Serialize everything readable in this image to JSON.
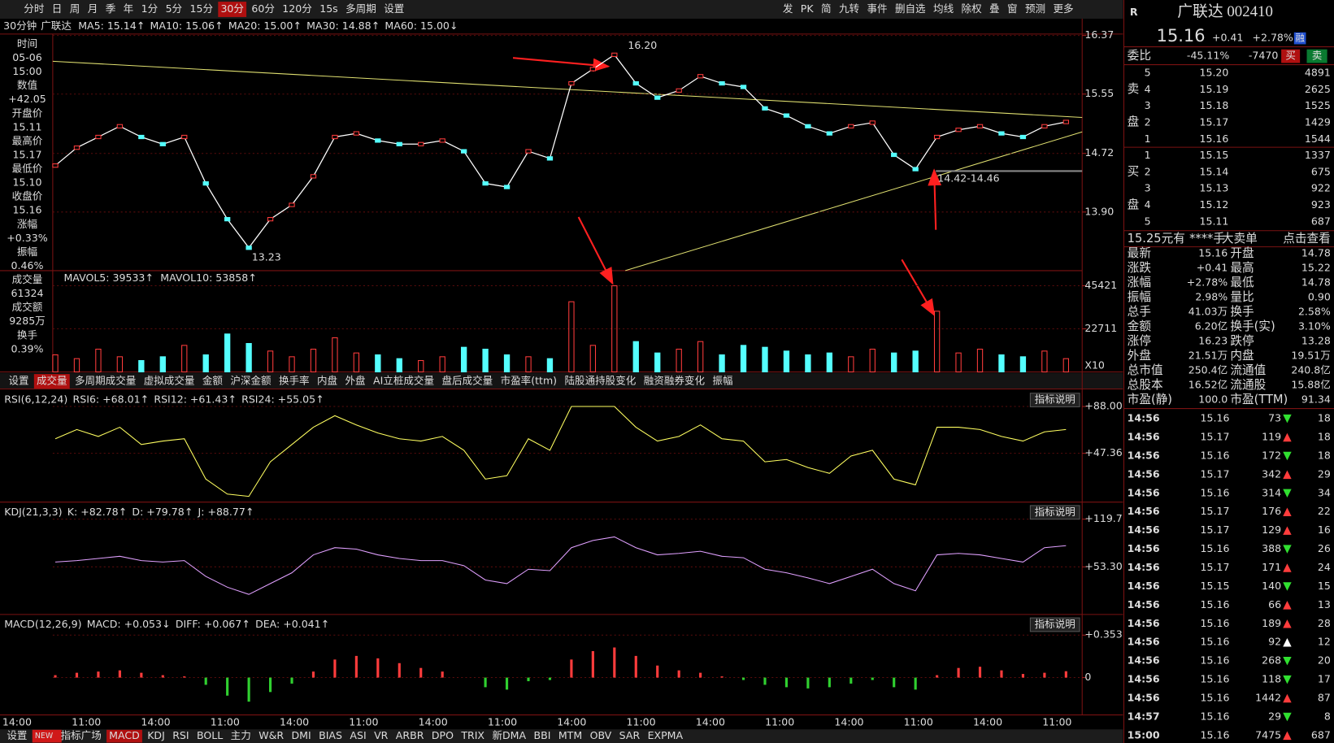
{
  "toolbar": {
    "left": [
      "分时",
      "日",
      "周",
      "月",
      "季",
      "年",
      "1分",
      "5分",
      "15分",
      "30分",
      "60分",
      "120分",
      "15s",
      "多周期",
      "设置"
    ],
    "active_index": 9,
    "right": [
      "发",
      "PK",
      "简",
      "九转",
      "事件",
      "删自选",
      "均线",
      "除权",
      "叠",
      "窗",
      "预测",
      "更多"
    ]
  },
  "header": {
    "period": "30分钟",
    "name": "广联达",
    "ma": [
      {
        "text": "MA5: 15.14↑",
        "color": "#ffffff"
      },
      {
        "text": "MA10: 15.06↑",
        "color": "#ffff00"
      },
      {
        "text": "MA20: 15.00↑",
        "color": "#ff50ff"
      },
      {
        "text": "MA30: 14.88↑",
        "color": "#30e030"
      },
      {
        "text": "MA60: 15.00↓",
        "color": "#6fa8ff"
      }
    ]
  },
  "info_panel": [
    {
      "text": "时间",
      "color": "#ddd"
    },
    {
      "text": "05-06",
      "color": "#fff"
    },
    {
      "text": "15:00",
      "color": "#fff"
    },
    {
      "text": "数值",
      "color": "#ddd"
    },
    {
      "text": "+42.05",
      "color": "#ff3c3c"
    },
    {
      "text": "开盘价",
      "color": "#ddd"
    },
    {
      "text": "15.11",
      "color": "#fff"
    },
    {
      "text": "最高价",
      "color": "#ddd"
    },
    {
      "text": "15.17",
      "color": "#ff3c3c"
    },
    {
      "text": "最低价",
      "color": "#ddd"
    },
    {
      "text": "15.10",
      "color": "#ff3c3c"
    },
    {
      "text": "收盘价",
      "color": "#ddd"
    },
    {
      "text": "15.16",
      "color": "#ff3c3c"
    },
    {
      "text": "涨幅",
      "color": "#ddd"
    },
    {
      "text": "+0.33%",
      "color": "#ff3c3c"
    },
    {
      "text": "振幅",
      "color": "#ddd"
    },
    {
      "text": "0.46%",
      "color": "#54ffff"
    },
    {
      "text": "成交量",
      "color": "#ddd"
    },
    {
      "text": "61324",
      "color": "#54ffff"
    },
    {
      "text": "成交额",
      "color": "#ddd"
    },
    {
      "text": "9285万",
      "color": "#54ffff"
    },
    {
      "text": "换手",
      "color": "#ddd"
    },
    {
      "text": "0.39%",
      "color": "#54ffff"
    }
  ],
  "price_chart": {
    "ylim": [
      13.08,
      16.39
    ],
    "yticks": [
      {
        "value": 13.9,
        "label": "13.90"
      },
      14.72,
      15.55,
      16.37
    ],
    "annotations": [
      "16.20",
      "13.23",
      "14.42-14.46"
    ],
    "closes": [
      14.55,
      14.8,
      14.95,
      15.1,
      14.95,
      14.85,
      14.95,
      14.3,
      13.8,
      13.4,
      13.8,
      14.0,
      14.4,
      14.95,
      15.0,
      14.9,
      14.85,
      14.85,
      14.9,
      14.75,
      14.3,
      14.25,
      14.75,
      14.65,
      15.7,
      15.9,
      16.1,
      15.7,
      15.5,
      15.6,
      15.8,
      15.7,
      15.65,
      15.35,
      15.25,
      15.1,
      15.0,
      15.1,
      15.15,
      14.7,
      14.5,
      14.95,
      15.05,
      15.1,
      15.0,
      14.95,
      15.1,
      15.16
    ]
  },
  "volume_chart": {
    "legend": [
      {
        "text": "MAVOL5: 39533↑",
        "color": "#ffffff"
      },
      {
        "text": "MAVOL10: 53858↑",
        "color": "#ffff00"
      }
    ],
    "ylim": [
      0,
      48000
    ],
    "yticks": [
      22711,
      45421
    ],
    "unit": "X10",
    "values": [
      9000,
      7000,
      12000,
      8000,
      6000,
      8000,
      14000,
      9000,
      20000,
      15000,
      11000,
      8000,
      12000,
      18000,
      10000,
      9000,
      7000,
      6000,
      8000,
      13000,
      12000,
      9000,
      8000,
      7000,
      37000,
      14000,
      45421,
      16000,
      10000,
      12000,
      16000,
      9000,
      14000,
      13000,
      11000,
      9000,
      10000,
      8000,
      12000,
      10000,
      11000,
      32000,
      10000,
      12000,
      9000,
      8000,
      11000,
      7000
    ]
  },
  "indicator_tabs": {
    "items": [
      "设置",
      "成交量",
      "多周期成交量",
      "虚拟成交量",
      "金额",
      "沪深金额",
      "换手率",
      "内盘",
      "外盘",
      "AI立桩成交量",
      "盘后成交量",
      "市盈率(ttm)",
      "陆股通持股变化",
      "融资融券变化",
      "振幅"
    ],
    "active_index": 1
  },
  "rsi": {
    "legend": [
      {
        "text": "RSI(6,12,24)",
        "color": "#ffffff"
      },
      {
        "text": "RSI6: +68.01↑",
        "color": "#ffffff"
      },
      {
        "text": "RSI12: +61.43↑",
        "color": "#9be09b"
      },
      {
        "text": "RSI24: +55.05↑",
        "color": "#6f8fff"
      }
    ],
    "button": "指标说明",
    "ylim": [
      5,
      101
    ],
    "yticks": [
      {
        "value": 47.36,
        "label": "+47.36"
      },
      {
        "value": 88,
        "label": "+88.00"
      }
    ],
    "color": "#ffff60",
    "values": [
      60,
      68,
      62,
      70,
      55,
      58,
      60,
      25,
      12,
      10,
      40,
      55,
      70,
      80,
      72,
      65,
      60,
      58,
      62,
      50,
      25,
      28,
      60,
      50,
      88,
      88,
      88,
      70,
      58,
      62,
      72,
      60,
      58,
      40,
      42,
      35,
      30,
      45,
      50,
      25,
      20,
      70,
      70,
      68,
      62,
      58,
      66,
      68.01
    ]
  },
  "kdj": {
    "legend": [
      {
        "text": "KDJ(21,3,3)",
        "color": "#ffffff"
      },
      {
        "text": "K: +82.78↑",
        "color": "#ffffff"
      },
      {
        "text": "D: +79.78↑",
        "color": "#ffff00"
      },
      {
        "text": "J: +88.77↑",
        "color": "#ff50ff"
      }
    ],
    "button": "指标说明",
    "ylim": [
      -13,
      141
    ],
    "yticks": [
      {
        "value": 53.3,
        "label": "+53.30"
      },
      {
        "value": 119.7,
        "label": "+119.7"
      }
    ],
    "color": "#e0a0ff",
    "values": [
      60,
      62,
      65,
      68,
      62,
      60,
      62,
      40,
      25,
      15,
      30,
      45,
      70,
      80,
      78,
      70,
      65,
      62,
      62,
      55,
      35,
      30,
      50,
      48,
      80,
      90,
      95,
      80,
      70,
      72,
      75,
      68,
      66,
      50,
      45,
      38,
      30,
      40,
      50,
      30,
      20,
      70,
      72,
      70,
      65,
      60,
      80,
      82.78
    ]
  },
  "macd": {
    "legend": [
      {
        "text": "MACD(12,26,9)",
        "color": "#ffffff"
      },
      {
        "text": "MACD: +0.053↓",
        "color": "#ff50ff"
      },
      {
        "text": "DIFF: +0.067↑",
        "color": "#ffffff"
      },
      {
        "text": "DEA: +0.041↑",
        "color": "#ffff00"
      }
    ],
    "button": "指标说明",
    "ylim": [
      -0.31,
      0.51
    ],
    "yticks": [
      0,
      {
        "value": 0.353,
        "label": "+0.353"
      }
    ],
    "values": [
      0.02,
      0.04,
      0.05,
      0.06,
      0.04,
      0.02,
      0.01,
      -0.06,
      -0.15,
      -0.2,
      -0.12,
      -0.05,
      0.05,
      0.15,
      0.18,
      0.16,
      0.12,
      0.08,
      0.05,
      0.0,
      -0.08,
      -0.1,
      -0.03,
      -0.02,
      0.15,
      0.22,
      0.25,
      0.18,
      0.1,
      0.06,
      0.04,
      0.01,
      -0.02,
      -0.06,
      -0.08,
      -0.09,
      -0.08,
      -0.05,
      -0.02,
      -0.08,
      -0.1,
      0.02,
      0.08,
      0.09,
      0.06,
      0.03,
      0.04,
      0.053
    ]
  },
  "time_axis": [
    "14:00",
    "11:00",
    "14:00",
    "11:00",
    "14:00",
    "11:00",
    "14:00",
    "11:00",
    "14:00",
    "11:00",
    "14:00",
    "11:00",
    "14:00",
    "11:00",
    "14:00",
    "11:00"
  ],
  "bottom_tabs": {
    "items": [
      "设置",
      "NEW",
      "指标广场",
      "MACD",
      "KDJ",
      "RSI",
      "BOLL",
      "主力",
      "W&R",
      "DMI",
      "BIAS",
      "ASI",
      "VR",
      "ARBR",
      "DPO",
      "TRIX",
      "新DMA",
      "BBI",
      "MTM",
      "OBV",
      "SAR",
      "EXPMA"
    ],
    "active_index": 3,
    "badge_index": 1
  },
  "quote": {
    "market": "R",
    "title": "广联达 002410",
    "price": "15.16",
    "change": "+0.41",
    "pct": "+2.78%",
    "tag": "融",
    "weibi_label": "委比",
    "weibi": "-45.11%",
    "weicha": "-7470",
    "buy": "买",
    "sell": "卖",
    "ask_label": [
      "卖",
      "盘"
    ],
    "bid_label": [
      "买",
      "盘"
    ],
    "asks": [
      [
        5,
        "15.20",
        4891
      ],
      [
        4,
        "15.19",
        2625
      ],
      [
        3,
        "15.18",
        1525
      ],
      [
        2,
        "15.17",
        1429
      ],
      [
        1,
        "15.16",
        1544
      ]
    ],
    "bids": [
      [
        1,
        "15.15",
        1337
      ],
      [
        2,
        "15.14",
        675
      ],
      [
        3,
        "15.13",
        922
      ],
      [
        4,
        "15.12",
        923
      ],
      [
        5,
        "15.11",
        687
      ]
    ],
    "big_order": [
      "15.25元有",
      "****手",
      "大卖单",
      "点击查看"
    ],
    "stats": [
      [
        "最新",
        "15.16",
        "#ff3c3c",
        "开盘",
        "14.78",
        "#ff3c3c"
      ],
      [
        "涨跌",
        "+0.41",
        "#ff3c3c",
        "最高",
        "15.22",
        "#ff3c3c"
      ],
      [
        "涨幅",
        "+2.78%",
        "#ff3c3c",
        "最低",
        "14.78",
        "#ff3c3c"
      ],
      [
        "振幅",
        "2.98%",
        "#ffff00",
        "量比",
        "0.90",
        "#ffff00"
      ],
      [
        "总手",
        "41.03万",
        "#ffff00",
        "换手",
        "2.58%",
        "#ffff00"
      ],
      [
        "金额",
        "6.20亿",
        "#ffff00",
        "换手(实)",
        "3.10%",
        "#ffff00"
      ],
      [
        "涨停",
        "16.23",
        "#ff3c3c",
        "跌停",
        "13.28",
        "#30e030"
      ],
      [
        "外盘",
        "21.51万",
        "#ff3c3c",
        "内盘",
        "19.51万",
        "#30e030"
      ],
      [
        "总市值",
        "250.4亿",
        "#ffff00",
        "流通值",
        "240.8亿",
        "#ffff00"
      ],
      [
        "总股本",
        "16.52亿",
        "#ffff00",
        "流通股",
        "15.88亿",
        "#ffff00"
      ],
      [
        "市盈(静)",
        "100.0",
        "#ffff00",
        "市盈(TTM)",
        "91.34",
        "#ffff00"
      ]
    ],
    "trades": [
      [
        "14:56",
        "15.16",
        73,
        "down",
        18
      ],
      [
        "14:56",
        "15.17",
        119,
        "up",
        18
      ],
      [
        "14:56",
        "15.16",
        172,
        "down",
        18
      ],
      [
        "14:56",
        "15.17",
        342,
        "up",
        29
      ],
      [
        "14:56",
        "15.16",
        314,
        "down",
        34
      ],
      [
        "14:56",
        "15.17",
        176,
        "up",
        22
      ],
      [
        "14:56",
        "15.17",
        129,
        "up",
        16
      ],
      [
        "14:56",
        "15.16",
        388,
        "down",
        26
      ],
      [
        "14:56",
        "15.17",
        171,
        "up",
        24
      ],
      [
        "14:56",
        "15.15",
        140,
        "down",
        15
      ],
      [
        "14:56",
        "15.16",
        66,
        "up",
        13
      ],
      [
        "14:56",
        "15.16",
        189,
        "up",
        28
      ],
      [
        "14:56",
        "15.16",
        92,
        "neutral",
        12
      ],
      [
        "14:56",
        "15.16",
        268,
        "down",
        20
      ],
      [
        "14:56",
        "15.16",
        118,
        "down",
        17
      ],
      [
        "14:56",
        "15.16",
        1442,
        "up",
        87
      ],
      [
        "14:57",
        "15.16",
        29,
        "down",
        8
      ],
      [
        "15:00",
        "15.16",
        7475,
        "up",
        687
      ]
    ]
  }
}
